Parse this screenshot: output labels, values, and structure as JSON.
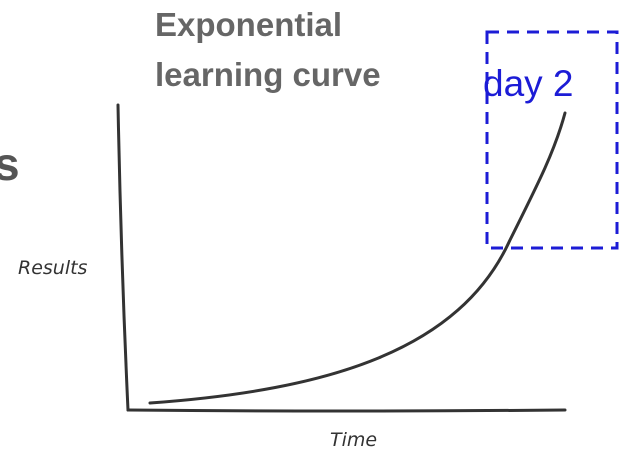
{
  "title_lines": [
    "Exponential",
    "learning curve"
  ],
  "cut_text": "s",
  "annotation": "day 2",
  "y_axis_label": "Results",
  "x_axis_label": "Time"
}
